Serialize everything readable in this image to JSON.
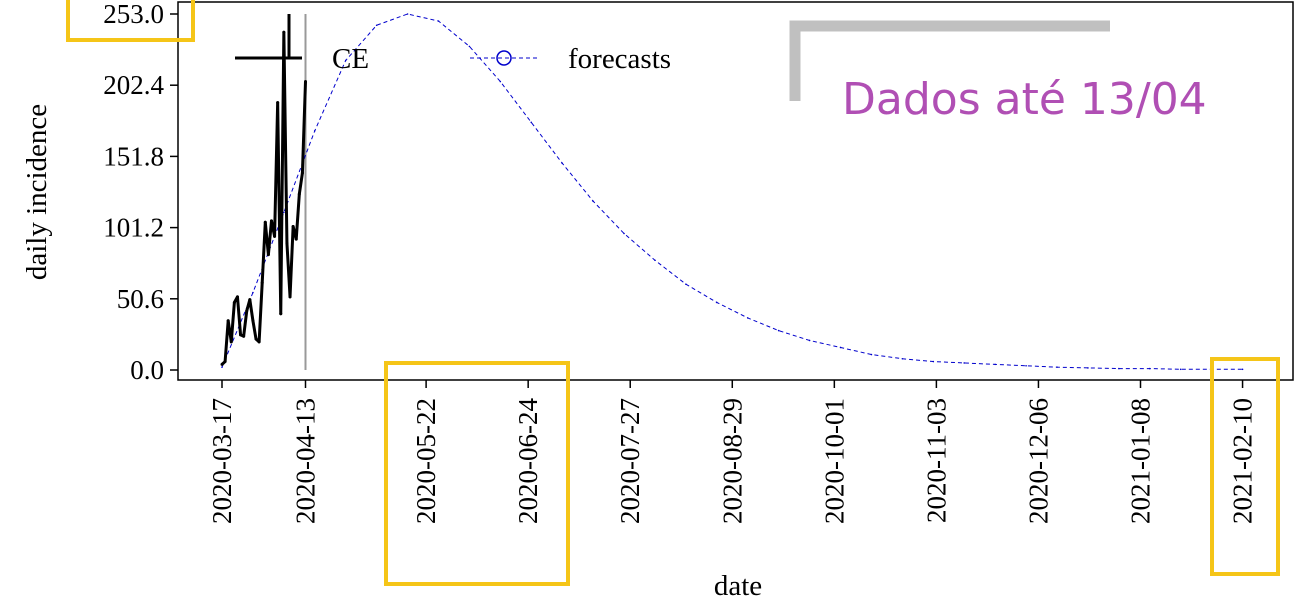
{
  "chart_data": {
    "type": "line",
    "title": "",
    "xlabel": "date",
    "ylabel": "daily incidence",
    "ylim": [
      0,
      253.0
    ],
    "y_ticks": [
      "0.0",
      "50.6",
      "101.2",
      "151.8",
      "202.4",
      "253.0"
    ],
    "x_ticks": [
      "2020-03-17",
      "2020-04-13",
      "2020-05-22",
      "2020-06-24",
      "2020-07-27",
      "2020-08-29",
      "2020-10-01",
      "2020-11-03",
      "2020-12-06",
      "2021-01-08",
      "2021-02-10"
    ],
    "data_cutoff_date": "2020-04-13",
    "legend": {
      "position": "top",
      "entries": [
        "CE",
        "forecasts"
      ]
    },
    "series": [
      {
        "name": "CE",
        "style": "solid",
        "color": "#000000",
        "x_day": [
          0,
          1,
          2,
          3,
          4,
          5,
          6,
          7,
          8,
          9,
          10,
          11,
          12,
          13,
          14,
          15,
          16,
          17,
          18,
          19,
          20,
          21,
          22,
          23,
          24,
          25,
          26,
          27
        ],
        "values": [
          4,
          6,
          35,
          20,
          48,
          52,
          25,
          24,
          42,
          50,
          35,
          22,
          20,
          62,
          105,
          82,
          106,
          95,
          190,
          40,
          240,
          90,
          52,
          102,
          93,
          125,
          140,
          205
        ]
      },
      {
        "name": "forecasts",
        "style": "dashed",
        "color": "#0000cc",
        "x_day": [
          0,
          10,
          20,
          30,
          40,
          50,
          60,
          70,
          80,
          90,
          100,
          110,
          120,
          130,
          140,
          150,
          160,
          170,
          180,
          190,
          200,
          210,
          220,
          230,
          240,
          250,
          260,
          270,
          280,
          290,
          300,
          310,
          320,
          330
        ],
        "values": [
          2,
          55,
          112,
          170,
          220,
          245,
          253,
          248,
          230,
          205,
          176,
          147,
          120,
          97,
          78,
          61,
          48,
          37,
          28,
          21,
          16,
          11,
          8,
          6,
          5,
          4,
          3,
          2,
          1.5,
          1,
          1,
          0.5,
          0.5,
          0.5
        ]
      }
    ]
  },
  "annotation": {
    "text": "Dados até 13/04",
    "color": "#b04fb4",
    "bracket_color": "#c0c0c0",
    "highlight_color": "#f5c518"
  }
}
